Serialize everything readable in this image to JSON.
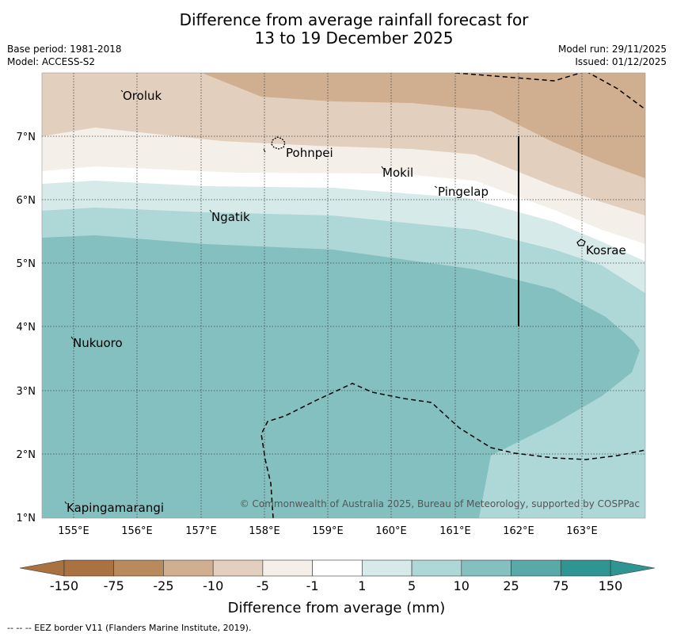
{
  "title": {
    "line1": "Difference from average rainfall forecast for",
    "line2": "13 to 19 December 2025"
  },
  "meta": {
    "base_period": "Base period: 1981-2018",
    "model": "Model: ACCESS-S2",
    "model_run": "Model run: 29/11/2025",
    "issued": "Issued: 01/12/2025"
  },
  "axes": {
    "x_ticks": [
      "155°E",
      "156°E",
      "157°E",
      "158°E",
      "159°E",
      "160°E",
      "161°E",
      "162°E",
      "163°E"
    ],
    "y_ticks": [
      "7°N",
      "6°N",
      "5°N",
      "4°N",
      "3°N",
      "2°N",
      "1°N"
    ]
  },
  "places": {
    "oroluk": "Oroluk",
    "pohnpei": "Pohnpei",
    "mokil": "Mokil",
    "pingelap": "Pingelap",
    "ngatik": "Ngatik",
    "kosrae": "Kosrae",
    "nukuoro": "Nukuoro",
    "kapingamarangi": "Kapingamarangi"
  },
  "credit": "© Commonwealth of Australia 2025, Bureau of Meteorology, supported by COSPPac",
  "colorbar": {
    "labels": [
      "-150",
      "-75",
      "-25",
      "-10",
      "-5",
      "-1",
      "1",
      "5",
      "10",
      "25",
      "75",
      "150"
    ],
    "colors": [
      "#a97240",
      "#b98a5c",
      "#cfaf8f",
      "#e2cfbd",
      "#f4efe9",
      "#ffffff",
      "#d6eaea",
      "#aed7d7",
      "#84c0c0",
      "#59a9a8",
      "#2f9593"
    ],
    "title": "Difference from average (mm)"
  },
  "footnote": "--  --  -- EEZ border V11 (Flanders Marine Institute, 2019)."
}
